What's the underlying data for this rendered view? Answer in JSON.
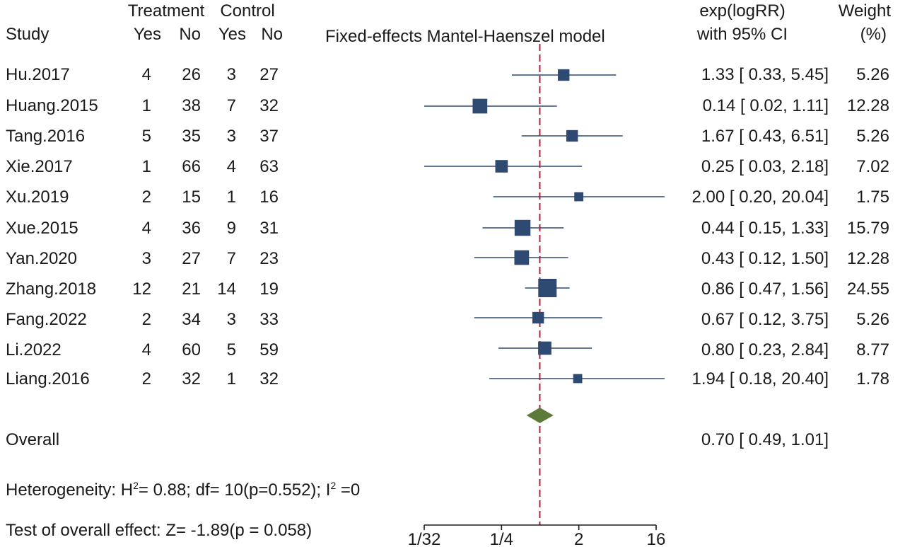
{
  "header": {
    "group_treatment": "Treatment",
    "group_control": "Control",
    "col_study": "Study",
    "col_yes_t": "Yes",
    "col_no_t": "No",
    "col_yes_c": "Yes",
    "col_no_c": "No",
    "model": "Fixed-effects Mantel-Haenszel model",
    "effect_line1": "exp(logRR)",
    "effect_line2": "with 95% CI",
    "weight_line1": "Weight",
    "weight_line2": "(%)"
  },
  "rows": [
    {
      "study": "Hu.2017",
      "t_yes": "4",
      "t_no": "26",
      "c_yes": "3",
      "c_no": "27",
      "ci": "1.33 [ 0.33,   5.45]",
      "weight": "5.26"
    },
    {
      "study": "Huang.2015",
      "t_yes": "1",
      "t_no": "38",
      "c_yes": "7",
      "c_no": "32",
      "ci": "0.14 [ 0.02,   1.11]",
      "weight": "12.28"
    },
    {
      "study": "Tang.2016",
      "t_yes": "5",
      "t_no": "35",
      "c_yes": "3",
      "c_no": "37",
      "ci": "1.67 [ 0.43,   6.51]",
      "weight": "5.26"
    },
    {
      "study": "Xie.2017",
      "t_yes": "1",
      "t_no": "66",
      "c_yes": "4",
      "c_no": "63",
      "ci": "0.25 [ 0.03,   2.18]",
      "weight": "7.02"
    },
    {
      "study": "Xu.2019",
      "t_yes": "2",
      "t_no": "15",
      "c_yes": "1",
      "c_no": "16",
      "ci": "2.00 [ 0.20, 20.04]",
      "weight": "1.75"
    },
    {
      "study": "Xue.2015",
      "t_yes": "4",
      "t_no": "36",
      "c_yes": "9",
      "c_no": "31",
      "ci": "0.44 [ 0.15,   1.33]",
      "weight": "15.79"
    },
    {
      "study": "Yan.2020",
      "t_yes": "3",
      "t_no": "27",
      "c_yes": "7",
      "c_no": "23",
      "ci": "0.43 [ 0.12,   1.50]",
      "weight": "12.28"
    },
    {
      "study": "Zhang.2018",
      "t_yes": "12",
      "t_no": "21",
      "c_yes": "14",
      "c_no": "19",
      "ci": "0.86 [ 0.47,   1.56]",
      "weight": "24.55"
    },
    {
      "study": "Fang.2022",
      "t_yes": "2",
      "t_no": "34",
      "c_yes": "3",
      "c_no": "33",
      "ci": "0.67 [ 0.12,   3.75]",
      "weight": "5.26"
    },
    {
      "study": "Li.2022",
      "t_yes": "4",
      "t_no": "60",
      "c_yes": "5",
      "c_no": "59",
      "ci": "0.80 [ 0.23,   2.84]",
      "weight": "8.77"
    },
    {
      "study": "Liang.2016",
      "t_yes": "2",
      "t_no": "32",
      "c_yes": "1",
      "c_no": "32",
      "ci": "1.94 [ 0.18, 20.40]",
      "weight": "1.78"
    }
  ],
  "overall": {
    "label": "Overall",
    "ci": "0.70 [ 0.49,   1.01]"
  },
  "footer": {
    "het_prefix": "Heterogeneity: H",
    "het_sup1": "2",
    "het_mid": "= 0.88; df= 10(p=0.552); I",
    "het_sup2": "2",
    "het_suffix": " =0",
    "test": "Test of overall  effect: Z= -1.89(p = 0.058)"
  },
  "chart_data": {
    "type": "forest",
    "scale": "log2",
    "xlim": [
      0.03125,
      16
    ],
    "ticks": [
      {
        "value": 0.03125,
        "label": "1/32"
      },
      {
        "value": 0.25,
        "label": "1/4"
      },
      {
        "value": 2,
        "label": "2"
      },
      {
        "value": 16,
        "label": "16"
      }
    ],
    "reference_line": 0.7,
    "studies": [
      {
        "est": 1.33,
        "lo": 0.33,
        "hi": 5.45,
        "weight": 5.26
      },
      {
        "est": 0.14,
        "lo": 0.02,
        "hi": 1.11,
        "weight": 12.28
      },
      {
        "est": 1.67,
        "lo": 0.43,
        "hi": 6.51,
        "weight": 5.26
      },
      {
        "est": 0.25,
        "lo": 0.03,
        "hi": 2.18,
        "weight": 7.02
      },
      {
        "est": 2.0,
        "lo": 0.2,
        "hi": 20.04,
        "weight": 1.75
      },
      {
        "est": 0.44,
        "lo": 0.15,
        "hi": 1.33,
        "weight": 15.79
      },
      {
        "est": 0.43,
        "lo": 0.12,
        "hi": 1.5,
        "weight": 12.28
      },
      {
        "est": 0.86,
        "lo": 0.47,
        "hi": 1.56,
        "weight": 24.55
      },
      {
        "est": 0.67,
        "lo": 0.12,
        "hi": 3.75,
        "weight": 5.26
      },
      {
        "est": 0.8,
        "lo": 0.23,
        "hi": 2.84,
        "weight": 8.77
      },
      {
        "est": 1.94,
        "lo": 0.18,
        "hi": 20.4,
        "weight": 1.78
      }
    ],
    "overall": {
      "est": 0.7,
      "lo": 0.49,
      "hi": 1.01
    },
    "colors": {
      "marker": "#2e4a72",
      "line": "#2e4a72",
      "diamond": "#5e7a3a",
      "reference": "#a8233a",
      "axis": "#1a1a1a"
    }
  }
}
